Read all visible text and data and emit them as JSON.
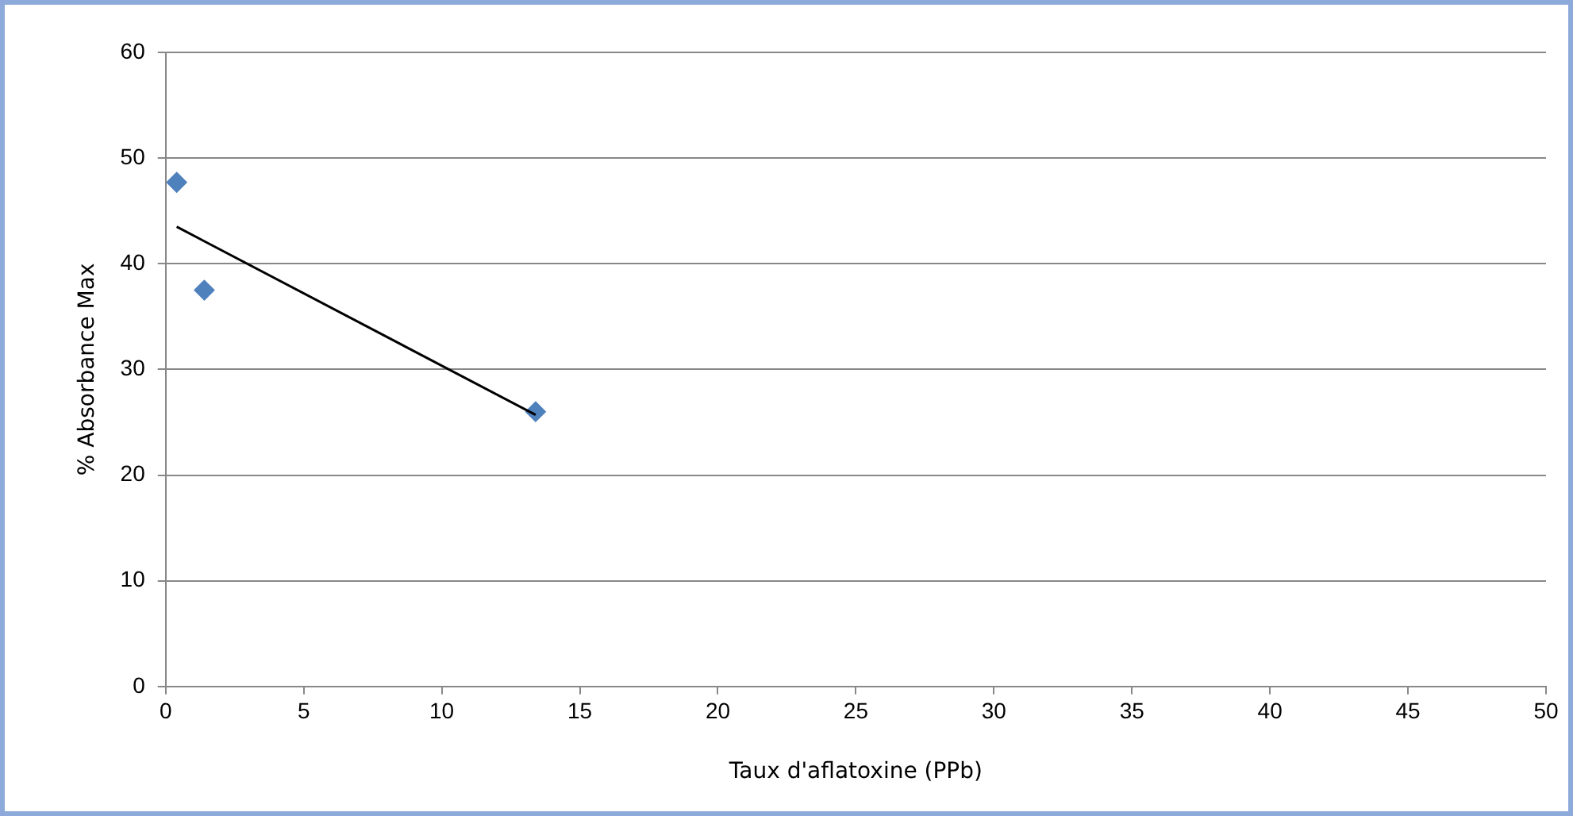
{
  "chart_data": {
    "type": "scatter",
    "xlabel": "Taux d'aflatoxine (PPb)",
    "ylabel": "% Absorbance Max",
    "xlim": [
      0,
      50
    ],
    "xticks": [
      0,
      5,
      10,
      15,
      20,
      25,
      30,
      35,
      40,
      45,
      50
    ],
    "ylim": [
      0,
      60
    ],
    "yticks": [
      0,
      10,
      20,
      30,
      40,
      50,
      60
    ],
    "grid": "y",
    "legend": false,
    "marker": "diamond",
    "series": [
      {
        "color": "#4f81bd",
        "x": [
          0.4,
          1.4,
          13.4
        ],
        "values": [
          47.7,
          37.5,
          26.0
        ]
      },
      {
        "type": "line",
        "color": "#000000",
        "x": [
          0.4,
          13.4
        ],
        "values": [
          43.5,
          25.7
        ],
        "marker": "none",
        "line_style": "solid"
      }
    ]
  }
}
